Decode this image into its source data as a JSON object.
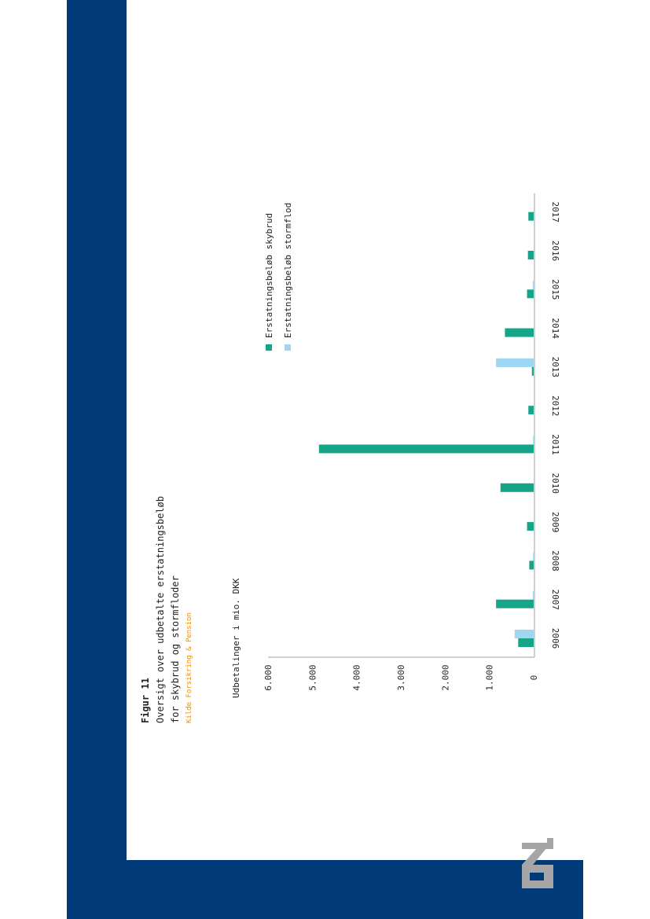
{
  "figure": {
    "label": "Figur 11",
    "title_line1": "Oversigt over udbetalte erstatningsbeløb",
    "title_line2": "for skybrud og stormfloder",
    "source": "Kilde Forsikring & Pension"
  },
  "brand": {
    "logo_text": "KL",
    "band_color": "#003a78",
    "logo_color": "#a6a6a6"
  },
  "chart_data": {
    "type": "bar",
    "ylabel": "Udbetalinger i mio. DKK",
    "ylim": [
      0,
      6000
    ],
    "yticks": [
      0,
      1000,
      2000,
      3000,
      4000,
      5000,
      6000
    ],
    "ytick_labels": [
      "0",
      "1.000",
      "2.000",
      "3.000",
      "4.000",
      "5.000",
      "6.000"
    ],
    "categories": [
      "2006",
      "2007",
      "2008",
      "2009",
      "2010",
      "2011",
      "2012",
      "2013",
      "2014",
      "2015",
      "2016",
      "2017"
    ],
    "series": [
      {
        "name": "Erstatningsbeløb skybrud",
        "color": "#17a589",
        "values": [
          350,
          850,
          100,
          150,
          750,
          4850,
          120,
          40,
          650,
          150,
          130,
          120
        ]
      },
      {
        "name": "Erstatningsbeløb stormflod",
        "color": "#9fd6f2",
        "values": [
          430,
          20,
          15,
          0,
          0,
          15,
          0,
          850,
          0,
          20,
          0,
          0
        ]
      }
    ],
    "legend": "top-right",
    "grid": false,
    "orientation": "rotated 90° clockwise"
  }
}
